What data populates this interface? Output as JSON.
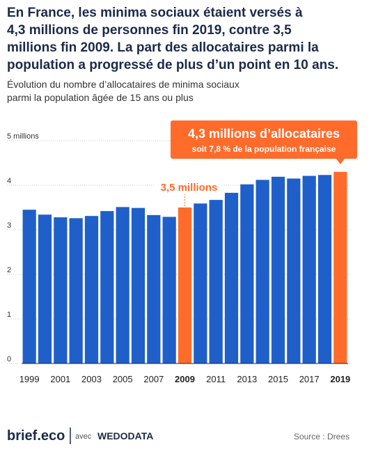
{
  "chart_data": {
    "type": "bar",
    "title": [
      "En France, les minima sociaux étaient versés à",
      "4,3 millions de personnes fin 2019, contre 3,5",
      "millions fin 2009. La part des allocataires parmi la",
      "population a progressé de plus d’un point en 10 ans."
    ],
    "subtitle": [
      "Évolution du nombre d’allocataires de minima sociaux",
      "parmi la population âgée de 15 ans ou plus"
    ],
    "categories": [
      "1999",
      null,
      "2001",
      null,
      "2003",
      null,
      "2005",
      null,
      "2007",
      null,
      "2009",
      null,
      "2011",
      null,
      "2013",
      null,
      "2015",
      null,
      "2017",
      null,
      "2019"
    ],
    "values": [
      3.45,
      3.34,
      3.28,
      3.26,
      3.31,
      3.42,
      3.51,
      3.49,
      3.33,
      3.29,
      3.5,
      3.59,
      3.67,
      3.83,
      4.02,
      4.12,
      4.19,
      4.15,
      4.21,
      4.23,
      4.3
    ],
    "colors": [
      "#1f5fc9",
      "#1f5fc9",
      "#1f5fc9",
      "#1f5fc9",
      "#1f5fc9",
      "#1f5fc9",
      "#1f5fc9",
      "#1f5fc9",
      "#1f5fc9",
      "#1f5fc9",
      "#ff6b2b",
      "#1f5fc9",
      "#1f5fc9",
      "#1f5fc9",
      "#1f5fc9",
      "#1f5fc9",
      "#1f5fc9",
      "#1f5fc9",
      "#1f5fc9",
      "#1f5fc9",
      "#ff6b2b"
    ],
    "ylim": [
      0,
      5
    ],
    "yticks": [
      0,
      1,
      2,
      3,
      4,
      {
        "value": 5,
        "label": "5 millions"
      }
    ],
    "grid": true,
    "annotations": [
      {
        "text": "3,5 millions"
      },
      {
        "text": "4,3 millions d’allocataires",
        "subtext": "soit 7,8 % de la population française"
      }
    ],
    "source": "Source : Drees"
  },
  "footer": {
    "brand": "brief.eco",
    "with": "avec",
    "partner": "WEDODATA"
  }
}
